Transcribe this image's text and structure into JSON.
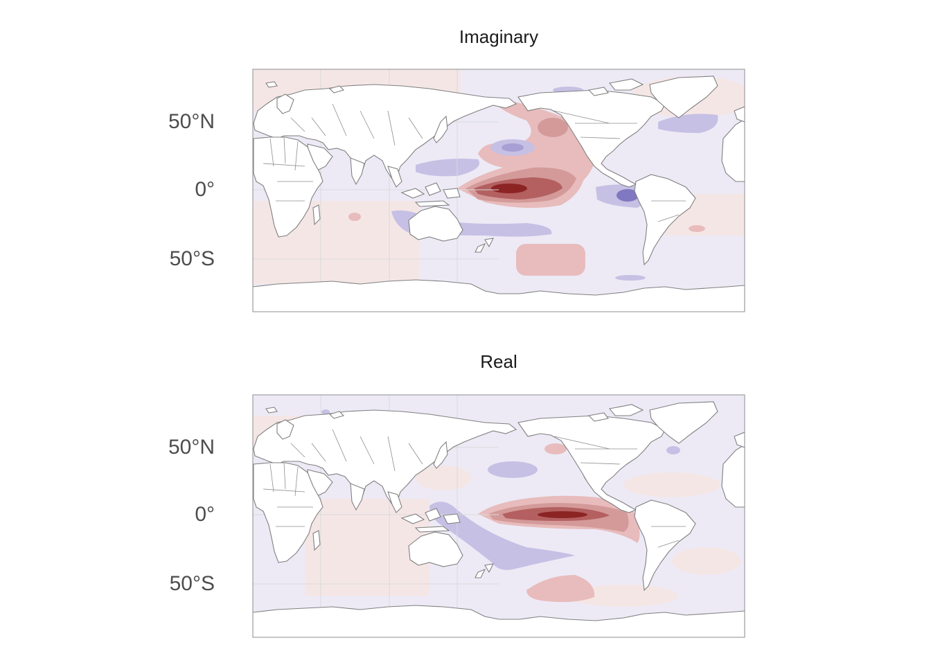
{
  "panels": [
    {
      "title": "Imaginary",
      "lat_labels": [
        "50°N",
        "0°",
        "50°S"
      ]
    },
    {
      "title": "Real",
      "lat_labels": [
        "50°N",
        "0°",
        "50°S"
      ]
    }
  ],
  "colors": {
    "ocean_neutral": "#edeaf6",
    "warm_faint": "#f5e6e6",
    "warm_light": "#e8bcbc",
    "warm_mid": "#d49a9a",
    "warm_strong": "#b46060",
    "warm_max": "#8c2424",
    "cool_faint": "#e4e0f2",
    "cool_light": "#c6c0e4",
    "cool_mid": "#a89fd4",
    "cool_strong": "#8078c0",
    "land": "#ffffff",
    "coast": "#7f7f7f",
    "grid": "#d9d9d9"
  }
}
